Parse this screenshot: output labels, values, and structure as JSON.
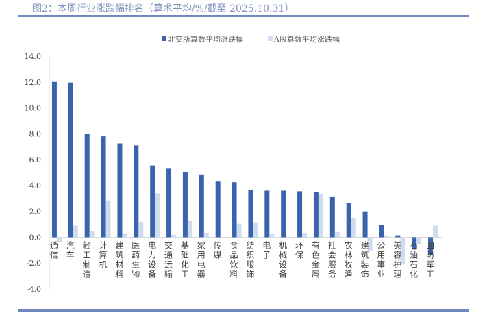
{
  "title": "图2：本周行业涨跌幅排名（算术平均/%/截至 2025.10.31）",
  "chart_data": {
    "type": "bar",
    "title": "图2：本周行业涨跌幅排名（算术平均/%/截至 2025.10.31）",
    "categories": [
      "通信",
      "汽车",
      "轻工制造",
      "计算机",
      "建筑材料",
      "医药生物",
      "电力设备",
      "交通运输",
      "基础化工",
      "家用电器",
      "传媒",
      "食品饮料",
      "纺织服饰",
      "电子",
      "机械设备",
      "环保",
      "有色金属",
      "社会服务",
      "农林牧渔",
      "建筑装饰",
      "公用事业",
      "美容护理",
      "石油石化",
      "国防军工"
    ],
    "series": [
      {
        "name": "北交所算数平均涨跌幅",
        "color": "#3a63ad",
        "values": [
          12.0,
          11.95,
          8.0,
          7.8,
          7.25,
          7.1,
          5.55,
          5.3,
          5.05,
          4.85,
          4.3,
          4.25,
          3.65,
          3.6,
          3.6,
          3.55,
          3.5,
          3.1,
          2.65,
          2.0,
          0.95,
          0.15,
          -0.95,
          -1.4
        ]
      },
      {
        "name": "A股算数平均涨跌幅",
        "color": "#cfdcf0",
        "values": [
          -0.4,
          0.9,
          0.5,
          2.85,
          0.25,
          1.2,
          3.4,
          0.2,
          1.25,
          0.3,
          0.0,
          1.05,
          1.15,
          0.25,
          0.0,
          0.3,
          3.3,
          0.4,
          1.5,
          -1.05,
          0.15,
          -2.1,
          -0.55,
          0.9
        ]
      }
    ],
    "ylim": [
      -4.0,
      14.0
    ],
    "yticks": [
      "-4.0",
      "-2.0",
      "0.0",
      "2.0",
      "4.0",
      "6.0",
      "8.0",
      "10.0",
      "12.0",
      "14.0"
    ],
    "legend": "top",
    "grid": false
  }
}
